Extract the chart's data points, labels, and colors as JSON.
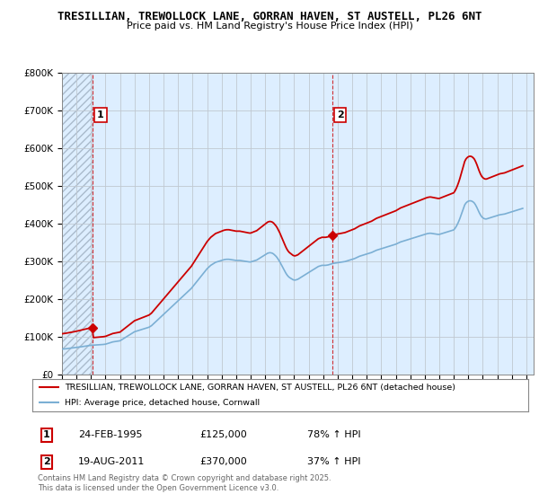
{
  "title1": "TRESILLIAN, TREWOLLOCK LANE, GORRAN HAVEN, ST AUSTELL, PL26 6NT",
  "title2": "Price paid vs. HM Land Registry's House Price Index (HPI)",
  "legend_entry1": "TRESILLIAN, TREWOLLOCK LANE, GORRAN HAVEN, ST AUSTELL, PL26 6NT (detached house)",
  "legend_entry2": "HPI: Average price, detached house, Cornwall",
  "annotation1_label": "1",
  "annotation1_date": "24-FEB-1995",
  "annotation1_price": "£125,000",
  "annotation1_hpi": "78% ↑ HPI",
  "annotation2_label": "2",
  "annotation2_date": "19-AUG-2011",
  "annotation2_price": "£370,000",
  "annotation2_hpi": "37% ↑ HPI",
  "footer": "Contains HM Land Registry data © Crown copyright and database right 2025.\nThis data is licensed under the Open Government Licence v3.0.",
  "ylim": [
    0,
    800000
  ],
  "yticks": [
    0,
    100000,
    200000,
    300000,
    400000,
    500000,
    600000,
    700000,
    800000
  ],
  "ytick_labels": [
    "£0",
    "£100K",
    "£200K",
    "£300K",
    "£400K",
    "£500K",
    "£600K",
    "£700K",
    "£800K"
  ],
  "background_color": "#ffffff",
  "plot_bg_color": "#ddeeff",
  "line1_color": "#cc0000",
  "line2_color": "#7bafd4",
  "vline_color": "#cc0000",
  "marker1_x": 1995.12,
  "marker1_y": 125000,
  "marker2_x": 2011.63,
  "marker2_y": 370000,
  "xmin": 1993.0,
  "xmax": 2025.5,
  "xticks": [
    1993,
    1994,
    1995,
    1996,
    1997,
    1998,
    1999,
    2000,
    2001,
    2002,
    2003,
    2004,
    2005,
    2006,
    2007,
    2008,
    2009,
    2010,
    2011,
    2012,
    2013,
    2014,
    2015,
    2016,
    2017,
    2018,
    2019,
    2020,
    2021,
    2022,
    2023,
    2024,
    2025
  ],
  "hpi_data_x": [
    1993.0,
    1993.083,
    1993.167,
    1993.25,
    1993.333,
    1993.417,
    1993.5,
    1993.583,
    1993.667,
    1993.75,
    1993.833,
    1993.917,
    1994.0,
    1994.083,
    1994.167,
    1994.25,
    1994.333,
    1994.417,
    1994.5,
    1994.583,
    1994.667,
    1994.75,
    1994.833,
    1994.917,
    1995.0,
    1995.083,
    1995.167,
    1995.25,
    1995.333,
    1995.417,
    1995.5,
    1995.583,
    1995.667,
    1995.75,
    1995.833,
    1995.917,
    1996.0,
    1996.083,
    1996.167,
    1996.25,
    1996.333,
    1996.417,
    1996.5,
    1996.583,
    1996.667,
    1996.75,
    1996.833,
    1996.917,
    1997.0,
    1997.083,
    1997.167,
    1997.25,
    1997.333,
    1997.417,
    1997.5,
    1997.583,
    1997.667,
    1997.75,
    1997.833,
    1997.917,
    1998.0,
    1998.083,
    1998.167,
    1998.25,
    1998.333,
    1998.417,
    1998.5,
    1998.583,
    1998.667,
    1998.75,
    1998.833,
    1998.917,
    1999.0,
    1999.083,
    1999.167,
    1999.25,
    1999.333,
    1999.417,
    1999.5,
    1999.583,
    1999.667,
    1999.75,
    1999.833,
    1999.917,
    2000.0,
    2000.083,
    2000.167,
    2000.25,
    2000.333,
    2000.417,
    2000.5,
    2000.583,
    2000.667,
    2000.75,
    2000.833,
    2000.917,
    2001.0,
    2001.083,
    2001.167,
    2001.25,
    2001.333,
    2001.417,
    2001.5,
    2001.583,
    2001.667,
    2001.75,
    2001.833,
    2001.917,
    2002.0,
    2002.083,
    2002.167,
    2002.25,
    2002.333,
    2002.417,
    2002.5,
    2002.583,
    2002.667,
    2002.75,
    2002.833,
    2002.917,
    2003.0,
    2003.083,
    2003.167,
    2003.25,
    2003.333,
    2003.417,
    2003.5,
    2003.583,
    2003.667,
    2003.75,
    2003.833,
    2003.917,
    2004.0,
    2004.083,
    2004.167,
    2004.25,
    2004.333,
    2004.417,
    2004.5,
    2004.583,
    2004.667,
    2004.75,
    2004.833,
    2004.917,
    2005.0,
    2005.083,
    2005.167,
    2005.25,
    2005.333,
    2005.417,
    2005.5,
    2005.583,
    2005.667,
    2005.75,
    2005.833,
    2005.917,
    2006.0,
    2006.083,
    2006.167,
    2006.25,
    2006.333,
    2006.417,
    2006.5,
    2006.583,
    2006.667,
    2006.75,
    2006.833,
    2006.917,
    2007.0,
    2007.083,
    2007.167,
    2007.25,
    2007.333,
    2007.417,
    2007.5,
    2007.583,
    2007.667,
    2007.75,
    2007.833,
    2007.917,
    2008.0,
    2008.083,
    2008.167,
    2008.25,
    2008.333,
    2008.417,
    2008.5,
    2008.583,
    2008.667,
    2008.75,
    2008.833,
    2008.917,
    2009.0,
    2009.083,
    2009.167,
    2009.25,
    2009.333,
    2009.417,
    2009.5,
    2009.583,
    2009.667,
    2009.75,
    2009.833,
    2009.917,
    2010.0,
    2010.083,
    2010.167,
    2010.25,
    2010.333,
    2010.417,
    2010.5,
    2010.583,
    2010.667,
    2010.75,
    2010.833,
    2010.917,
    2011.0,
    2011.083,
    2011.167,
    2011.25,
    2011.333,
    2011.417,
    2011.5,
    2011.583,
    2011.667,
    2011.75,
    2011.833,
    2011.917,
    2012.0,
    2012.083,
    2012.167,
    2012.25,
    2012.333,
    2012.417,
    2012.5,
    2012.583,
    2012.667,
    2012.75,
    2012.833,
    2012.917,
    2013.0,
    2013.083,
    2013.167,
    2013.25,
    2013.333,
    2013.417,
    2013.5,
    2013.583,
    2013.667,
    2013.75,
    2013.833,
    2013.917,
    2014.0,
    2014.083,
    2014.167,
    2014.25,
    2014.333,
    2014.417,
    2014.5,
    2014.583,
    2014.667,
    2014.75,
    2014.833,
    2014.917,
    2015.0,
    2015.083,
    2015.167,
    2015.25,
    2015.333,
    2015.417,
    2015.5,
    2015.583,
    2015.667,
    2015.75,
    2015.833,
    2015.917,
    2016.0,
    2016.083,
    2016.167,
    2016.25,
    2016.333,
    2016.417,
    2016.5,
    2016.583,
    2016.667,
    2016.75,
    2016.833,
    2016.917,
    2017.0,
    2017.083,
    2017.167,
    2017.25,
    2017.333,
    2017.417,
    2017.5,
    2017.583,
    2017.667,
    2017.75,
    2017.833,
    2017.917,
    2018.0,
    2018.083,
    2018.167,
    2018.25,
    2018.333,
    2018.417,
    2018.5,
    2018.583,
    2018.667,
    2018.75,
    2018.833,
    2018.917,
    2019.0,
    2019.083,
    2019.167,
    2019.25,
    2019.333,
    2019.417,
    2019.5,
    2019.583,
    2019.667,
    2019.75,
    2019.833,
    2019.917,
    2020.0,
    2020.083,
    2020.167,
    2020.25,
    2020.333,
    2020.417,
    2020.5,
    2020.583,
    2020.667,
    2020.75,
    2020.833,
    2020.917,
    2021.0,
    2021.083,
    2021.167,
    2021.25,
    2021.333,
    2021.417,
    2021.5,
    2021.583,
    2021.667,
    2021.75,
    2021.833,
    2021.917,
    2022.0,
    2022.083,
    2022.167,
    2022.25,
    2022.333,
    2022.417,
    2022.5,
    2022.583,
    2022.667,
    2022.75,
    2022.833,
    2022.917,
    2023.0,
    2023.083,
    2023.167,
    2023.25,
    2023.333,
    2023.417,
    2023.5,
    2023.583,
    2023.667,
    2023.75,
    2023.833,
    2023.917,
    2024.0,
    2024.083,
    2024.167,
    2024.25,
    2024.333,
    2024.417,
    2024.5,
    2024.583,
    2024.667,
    2024.75
  ],
  "hpi_data_y": [
    68000,
    68200,
    68500,
    68800,
    69200,
    69600,
    70000,
    70300,
    70600,
    71000,
    71400,
    71800,
    72200,
    72700,
    73200,
    73700,
    74200,
    74700,
    75200,
    75600,
    76000,
    76500,
    77000,
    77500,
    78000,
    78200,
    78400,
    78600,
    78700,
    78800,
    79000,
    79300,
    79600,
    79900,
    80200,
    80500,
    81000,
    82000,
    83000,
    84000,
    85000,
    86000,
    87000,
    87500,
    88000,
    88500,
    89000,
    89500,
    90000,
    92000,
    94000,
    96000,
    98000,
    100000,
    102000,
    104000,
    106000,
    108000,
    110000,
    112000,
    114000,
    115000,
    116000,
    117000,
    118000,
    119000,
    120000,
    121000,
    122000,
    123000,
    124000,
    125000,
    126000,
    128000,
    130000,
    133000,
    136000,
    139000,
    142000,
    145000,
    148000,
    151000,
    154000,
    157000,
    160000,
    163000,
    166000,
    169000,
    172000,
    175000,
    178000,
    181000,
    184000,
    187000,
    190000,
    193000,
    196000,
    199000,
    202000,
    205000,
    208000,
    211000,
    214000,
    217000,
    220000,
    223000,
    226000,
    229000,
    233000,
    237000,
    241000,
    245000,
    249000,
    253000,
    257000,
    261000,
    265000,
    269000,
    273000,
    277000,
    281000,
    284000,
    287000,
    290000,
    292000,
    294000,
    296000,
    298000,
    299000,
    300000,
    301000,
    302000,
    303000,
    304000,
    305000,
    305500,
    306000,
    306000,
    306000,
    305500,
    305000,
    304500,
    304000,
    303500,
    303000,
    303000,
    303000,
    303000,
    302500,
    302000,
    301500,
    301000,
    300500,
    300000,
    299500,
    299000,
    299000,
    300000,
    301000,
    302000,
    303000,
    304000,
    306000,
    308000,
    310000,
    312000,
    314000,
    316000,
    318000,
    320000,
    322000,
    323000,
    323500,
    323000,
    322000,
    320000,
    317000,
    314000,
    310000,
    305000,
    300000,
    294000,
    288000,
    282000,
    276000,
    270000,
    265000,
    261000,
    258000,
    256000,
    254000,
    252000,
    251000,
    251000,
    252000,
    253000,
    255000,
    257000,
    259000,
    261000,
    263000,
    265000,
    267000,
    269000,
    271000,
    273000,
    275000,
    277000,
    279000,
    281000,
    283000,
    285000,
    287000,
    288000,
    289000,
    290000,
    290000,
    290000,
    290000,
    290500,
    291000,
    292000,
    293000,
    294000,
    295000,
    295500,
    296000,
    296500,
    297000,
    297500,
    298000,
    298500,
    299000,
    299500,
    300000,
    301000,
    302000,
    303000,
    304000,
    305000,
    306000,
    307000,
    308000,
    309500,
    311000,
    312500,
    314000,
    315000,
    316000,
    317000,
    318000,
    319000,
    320000,
    321000,
    322000,
    323000,
    324000,
    325500,
    327000,
    328500,
    330000,
    331000,
    332000,
    333000,
    334000,
    335000,
    336000,
    337000,
    338000,
    339000,
    340000,
    341000,
    342000,
    343000,
    344000,
    345000,
    346000,
    347500,
    349000,
    350500,
    352000,
    353000,
    354000,
    355000,
    356000,
    357000,
    358000,
    359000,
    360000,
    361000,
    362000,
    363000,
    364000,
    365000,
    366000,
    367000,
    368000,
    369000,
    370000,
    371000,
    372000,
    373000,
    374000,
    374500,
    375000,
    375000,
    374500,
    374000,
    373500,
    373000,
    372500,
    372000,
    372000,
    373000,
    374000,
    375000,
    376000,
    377000,
    378000,
    379000,
    380000,
    381000,
    382000,
    383000,
    384000,
    388000,
    393000,
    399000,
    406000,
    414000,
    423000,
    432000,
    441000,
    450000,
    455000,
    458000,
    460000,
    461000,
    461000,
    460000,
    458000,
    455000,
    450000,
    444000,
    437000,
    430000,
    424000,
    419000,
    416000,
    414000,
    413000,
    413000,
    414000,
    415000,
    416000,
    417000,
    418000,
    419000,
    420000,
    421000,
    422000,
    423000,
    424000,
    424500,
    425000,
    425500,
    426000,
    427000,
    428000,
    429000,
    430000,
    431000,
    432000,
    433000,
    434000,
    435000,
    436000,
    437000,
    438000,
    439000,
    440000,
    441000
  ]
}
